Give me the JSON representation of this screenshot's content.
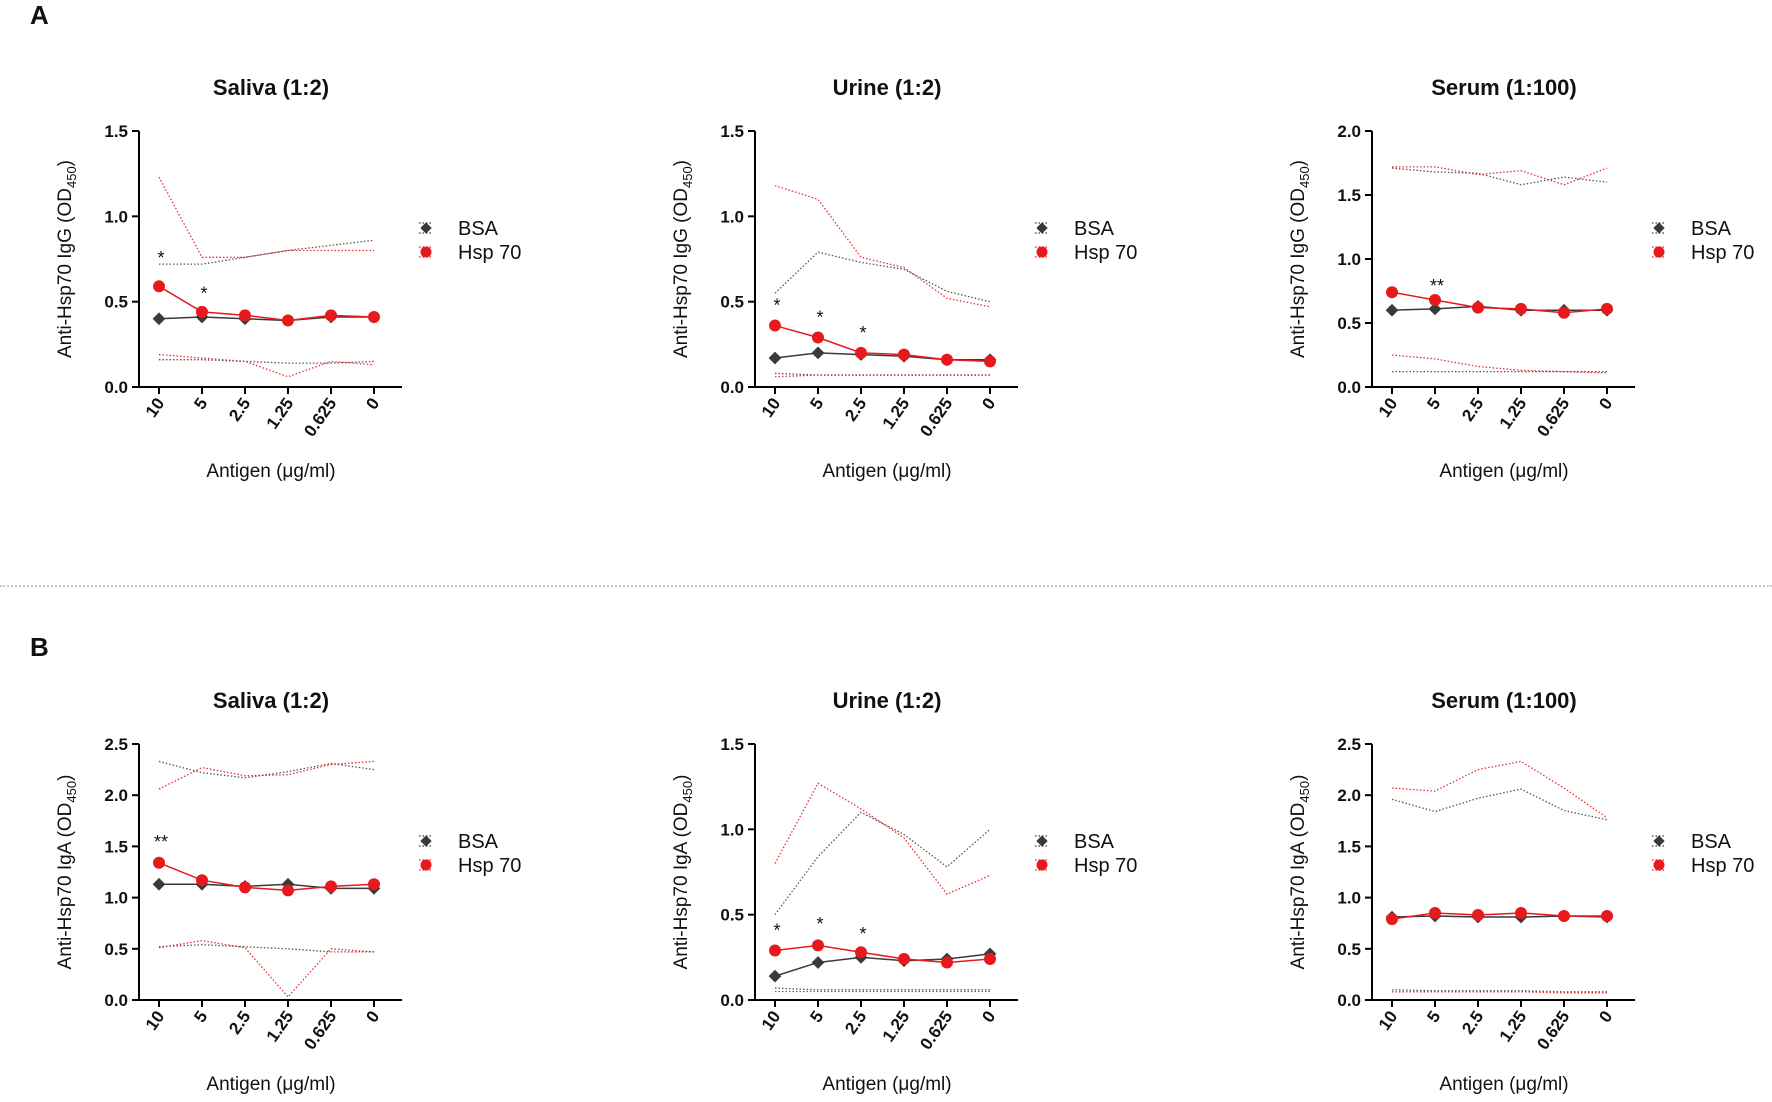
{
  "panels": [
    {
      "label": "A"
    },
    {
      "label": "B"
    }
  ],
  "colors": {
    "bsa": "#3a3a3a",
    "hsp70": "#e8191c",
    "axis": "#000000",
    "divider": "#c8c8c8"
  },
  "chart_data": [
    {
      "type": "line",
      "panel": "A",
      "title": "Saliva (1:2)",
      "xlabel": "Antigen (μg/ml)",
      "ylabel": "Anti-Hsp70 IgG (OD",
      "ylabel_sub": "450",
      "ylabel_end": ")",
      "categories": [
        "10",
        "5",
        "2.5",
        "1.25",
        "0.625",
        "0"
      ],
      "ylim": [
        0,
        1.5
      ],
      "yticks": [
        "0.0",
        "0.5",
        "1.0",
        "1.5"
      ],
      "legend": [
        "BSA",
        "Hsp 70"
      ],
      "legend_position": "right",
      "series": [
        {
          "name": "BSA",
          "values": [
            0.4,
            0.41,
            0.4,
            0.39,
            0.41,
            0.41
          ],
          "upper": [
            0.72,
            0.72,
            0.76,
            0.8,
            0.83,
            0.86
          ],
          "lower": [
            0.16,
            0.16,
            0.15,
            0.14,
            0.14,
            0.15
          ]
        },
        {
          "name": "Hsp 70",
          "values": [
            0.59,
            0.44,
            0.42,
            0.39,
            0.42,
            0.41
          ],
          "upper": [
            1.23,
            0.76,
            0.76,
            0.8,
            0.8,
            0.8
          ],
          "lower": [
            0.19,
            0.17,
            0.15,
            0.06,
            0.15,
            0.13
          ]
        }
      ],
      "annotations": [
        {
          "x": "10",
          "y": 0.78,
          "text": "*"
        },
        {
          "x": "5",
          "y": 0.57,
          "text": "*"
        }
      ]
    },
    {
      "type": "line",
      "panel": "A",
      "title": "Urine (1:2)",
      "xlabel": "Antigen (μg/ml)",
      "ylabel": "Anti-Hsp70 IgG (OD",
      "ylabel_sub": "450",
      "ylabel_end": ")",
      "categories": [
        "10",
        "5",
        "2.5",
        "1.25",
        "0.625",
        "0"
      ],
      "ylim": [
        0,
        1.5
      ],
      "yticks": [
        "0.0",
        "0.5",
        "1.0",
        "1.5"
      ],
      "legend": [
        "BSA",
        "Hsp 70"
      ],
      "legend_position": "right",
      "series": [
        {
          "name": "BSA",
          "values": [
            0.17,
            0.2,
            0.19,
            0.18,
            0.16,
            0.16
          ],
          "upper": [
            0.55,
            0.79,
            0.73,
            0.69,
            0.56,
            0.5
          ],
          "lower": [
            0.08,
            0.07,
            0.07,
            0.07,
            0.07,
            0.07
          ]
        },
        {
          "name": "Hsp 70",
          "values": [
            0.36,
            0.29,
            0.2,
            0.19,
            0.16,
            0.15
          ],
          "upper": [
            1.18,
            1.1,
            0.76,
            0.7,
            0.52,
            0.47
          ],
          "lower": [
            0.06,
            0.07,
            0.07,
            0.07,
            0.07,
            0.07
          ]
        }
      ],
      "annotations": [
        {
          "x": "10",
          "y": 0.5,
          "text": "*"
        },
        {
          "x": "5",
          "y": 0.43,
          "text": "*"
        },
        {
          "x": "2.5",
          "y": 0.34,
          "text": "*"
        }
      ]
    },
    {
      "type": "line",
      "panel": "A",
      "title": "Serum (1:100)",
      "xlabel": "Antigen (μg/ml)",
      "ylabel": "Anti-Hsp70 IgG (OD",
      "ylabel_sub": "450",
      "ylabel_end": ")",
      "categories": [
        "10",
        "5",
        "2.5",
        "1.25",
        "0.625",
        "0"
      ],
      "ylim": [
        0,
        2.0
      ],
      "yticks": [
        "0.0",
        "0.5",
        "1.0",
        "1.5",
        "2.0"
      ],
      "legend": [
        "BSA",
        "Hsp 70"
      ],
      "legend_position": "right",
      "series": [
        {
          "name": "BSA",
          "values": [
            0.6,
            0.61,
            0.63,
            0.6,
            0.6,
            0.6
          ],
          "upper": [
            1.71,
            1.68,
            1.67,
            1.58,
            1.64,
            1.6
          ],
          "lower": [
            0.12,
            0.12,
            0.12,
            0.12,
            0.12,
            0.12
          ]
        },
        {
          "name": "Hsp 70",
          "values": [
            0.74,
            0.68,
            0.62,
            0.61,
            0.58,
            0.61
          ],
          "upper": [
            1.72,
            1.72,
            1.66,
            1.69,
            1.58,
            1.71
          ],
          "lower": [
            0.25,
            0.22,
            0.16,
            0.13,
            0.12,
            0.11
          ]
        }
      ],
      "annotations": [
        {
          "x": "5",
          "y": 0.82,
          "text": "**"
        }
      ]
    },
    {
      "type": "line",
      "panel": "B",
      "title": "Saliva (1:2)",
      "xlabel": "Antigen (μg/ml)",
      "ylabel": "Anti-Hsp70 IgA (OD",
      "ylabel_sub": "450",
      "ylabel_end": ")",
      "categories": [
        "10",
        "5",
        "2.5",
        "1.25",
        "0.625",
        "0"
      ],
      "ylim": [
        0,
        2.5
      ],
      "yticks": [
        "0.0",
        "0.5",
        "1.0",
        "1.5",
        "2.0",
        "2.5"
      ],
      "legend": [
        "BSA",
        "Hsp 70"
      ],
      "legend_position": "right",
      "series": [
        {
          "name": "BSA",
          "values": [
            1.13,
            1.13,
            1.11,
            1.13,
            1.09,
            1.09
          ],
          "upper": [
            2.33,
            2.22,
            2.17,
            2.23,
            2.31,
            2.25
          ],
          "lower": [
            0.52,
            0.54,
            0.52,
            0.5,
            0.47,
            0.47
          ]
        },
        {
          "name": "Hsp 70",
          "values": [
            1.34,
            1.17,
            1.1,
            1.07,
            1.11,
            1.13
          ],
          "upper": [
            2.06,
            2.27,
            2.19,
            2.2,
            2.3,
            2.33
          ],
          "lower": [
            0.51,
            0.58,
            0.51,
            0.03,
            0.5,
            0.47
          ]
        }
      ],
      "annotations": [
        {
          "x": "10",
          "y": 1.58,
          "text": "**"
        }
      ]
    },
    {
      "type": "line",
      "panel": "B",
      "title": "Urine (1:2)",
      "xlabel": "Antigen (μg/ml)",
      "ylabel": "Anti-Hsp70 IgA (OD",
      "ylabel_sub": "450",
      "ylabel_end": ")",
      "categories": [
        "10",
        "5",
        "2.5",
        "1.25",
        "0.625",
        "0"
      ],
      "ylim": [
        0,
        1.5
      ],
      "yticks": [
        "0.0",
        "0.5",
        "1.0",
        "1.5"
      ],
      "legend": [
        "BSA",
        "Hsp 70"
      ],
      "legend_position": "right",
      "series": [
        {
          "name": "BSA",
          "values": [
            0.14,
            0.22,
            0.25,
            0.23,
            0.24,
            0.27
          ],
          "upper": [
            0.5,
            0.84,
            1.1,
            0.97,
            0.78,
            1.0
          ],
          "lower": [
            0.07,
            0.06,
            0.06,
            0.06,
            0.06,
            0.06
          ]
        },
        {
          "name": "Hsp 70",
          "values": [
            0.29,
            0.32,
            0.28,
            0.24,
            0.22,
            0.24
          ],
          "upper": [
            0.8,
            1.27,
            1.12,
            0.95,
            0.62,
            0.73
          ],
          "lower": [
            0.05,
            0.05,
            0.05,
            0.05,
            0.05,
            0.05
          ]
        }
      ],
      "annotations": [
        {
          "x": "10",
          "y": 0.43,
          "text": "*"
        },
        {
          "x": "5",
          "y": 0.47,
          "text": "*"
        },
        {
          "x": "2.5",
          "y": 0.41,
          "text": "*"
        }
      ]
    },
    {
      "type": "line",
      "panel": "B",
      "title": "Serum (1:100)",
      "xlabel": "Antigen (μg/ml)",
      "ylabel": "Anti-Hsp70 IgA (OD",
      "ylabel_sub": "450",
      "ylabel_end": ")",
      "categories": [
        "10",
        "5",
        "2.5",
        "1.25",
        "0.625",
        "0"
      ],
      "ylim": [
        0,
        2.5
      ],
      "yticks": [
        "0.0",
        "0.5",
        "1.0",
        "1.5",
        "2.0",
        "2.5"
      ],
      "legend": [
        "BSA",
        "Hsp 70"
      ],
      "legend_position": "right",
      "series": [
        {
          "name": "BSA",
          "values": [
            0.81,
            0.82,
            0.81,
            0.81,
            0.82,
            0.81
          ],
          "upper": [
            1.96,
            1.84,
            1.97,
            2.06,
            1.85,
            1.76
          ],
          "lower": [
            0.1,
            0.09,
            0.09,
            0.09,
            0.08,
            0.08
          ]
        },
        {
          "name": "Hsp 70",
          "values": [
            0.79,
            0.85,
            0.83,
            0.85,
            0.82,
            0.82
          ],
          "upper": [
            2.07,
            2.04,
            2.25,
            2.33,
            2.07,
            1.78
          ],
          "lower": [
            0.08,
            0.08,
            0.08,
            0.08,
            0.07,
            0.07
          ]
        }
      ],
      "annotations": []
    }
  ]
}
